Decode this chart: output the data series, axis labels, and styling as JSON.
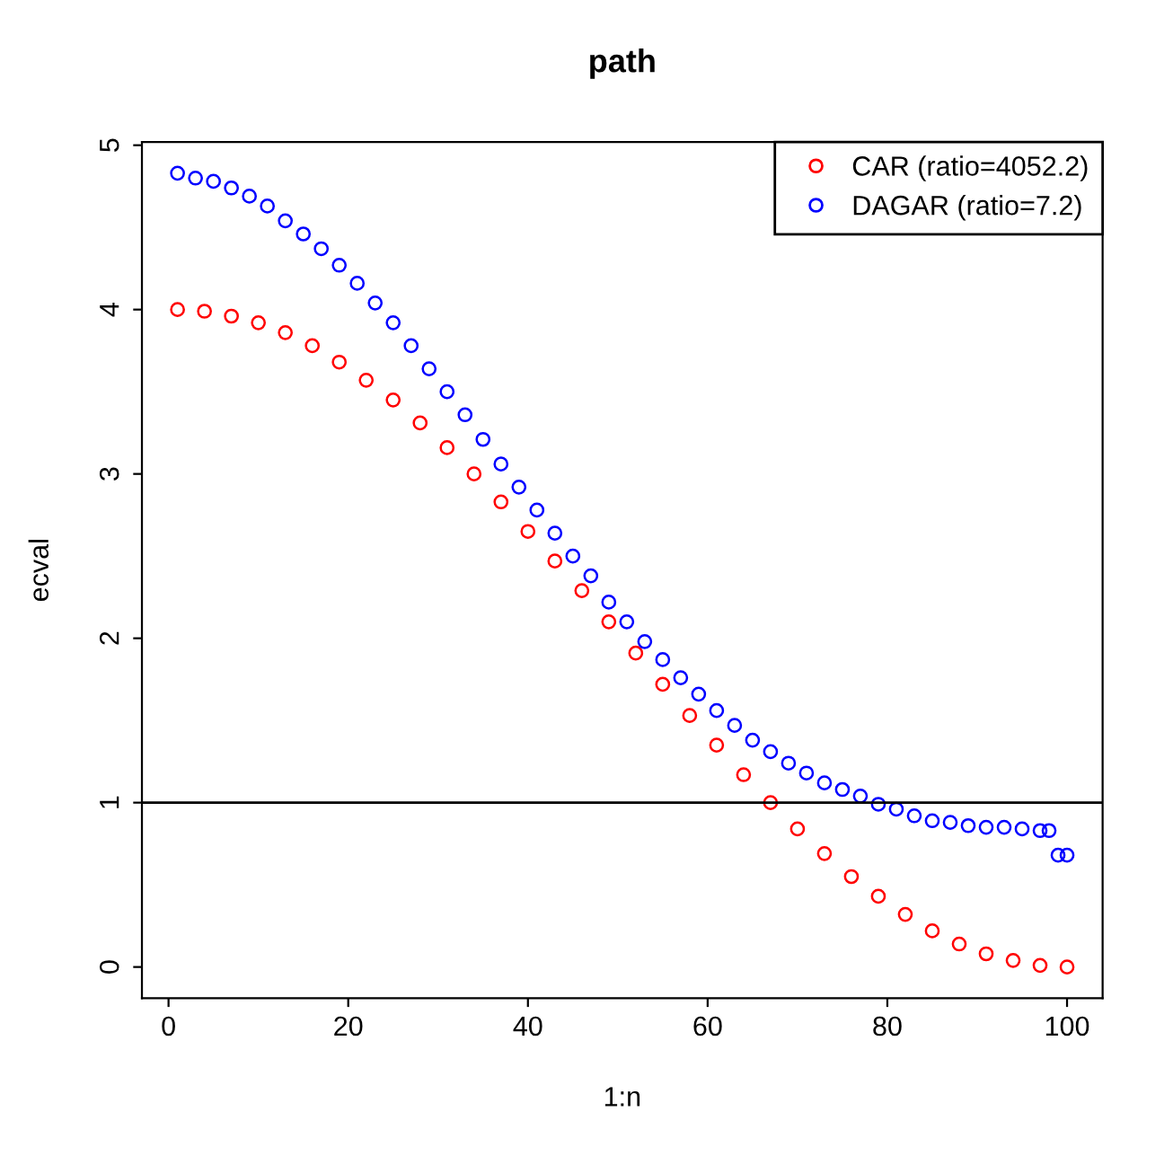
{
  "chart_data": {
    "type": "scatter",
    "title": "path",
    "xlabel": "1:n",
    "ylabel": "ecval",
    "xlim": [
      -2.96,
      103.96
    ],
    "ylim": [
      -0.19,
      5.02
    ],
    "xticks": [
      0,
      20,
      40,
      60,
      80,
      100
    ],
    "yticks": [
      0,
      1,
      2,
      3,
      4,
      5
    ],
    "marker": "circle",
    "grid": false,
    "legend": "top right",
    "ref_lines": [
      {
        "axis": "y",
        "value": 1,
        "color": "#000000",
        "line_style": "solid"
      }
    ],
    "series": [
      {
        "name": "CAR (ratio=4052.2)",
        "color": "#ff0000",
        "x": [
          1,
          4,
          7,
          10,
          13,
          16,
          19,
          22,
          25,
          28,
          31,
          34,
          37,
          40,
          43,
          46,
          49,
          52,
          55,
          58,
          61,
          64,
          67,
          70,
          73,
          76,
          79,
          82,
          85,
          88,
          91,
          94,
          97,
          100
        ],
        "values": [
          4.0,
          3.99,
          3.96,
          3.92,
          3.86,
          3.78,
          3.68,
          3.57,
          3.45,
          3.31,
          3.16,
          3.0,
          2.83,
          2.65,
          2.47,
          2.29,
          2.1,
          1.91,
          1.72,
          1.53,
          1.35,
          1.17,
          1.0,
          0.84,
          0.69,
          0.55,
          0.43,
          0.32,
          0.22,
          0.14,
          0.08,
          0.04,
          0.01,
          0.0
        ]
      },
      {
        "name": "DAGAR (ratio=7.2)",
        "color": "#0000ff",
        "x": [
          1,
          3,
          5,
          7,
          9,
          11,
          13,
          15,
          17,
          19,
          21,
          23,
          25,
          27,
          29,
          31,
          33,
          35,
          37,
          39,
          41,
          43,
          45,
          47,
          49,
          51,
          53,
          55,
          57,
          59,
          61,
          63,
          65,
          67,
          69,
          71,
          73,
          75,
          77,
          79,
          81,
          83,
          85,
          87,
          89,
          91,
          93,
          95,
          97,
          98,
          99,
          100
        ],
        "values": [
          4.83,
          4.8,
          4.78,
          4.74,
          4.69,
          4.63,
          4.54,
          4.46,
          4.37,
          4.27,
          4.16,
          4.04,
          3.92,
          3.78,
          3.64,
          3.5,
          3.36,
          3.21,
          3.06,
          2.92,
          2.78,
          2.64,
          2.5,
          2.38,
          2.22,
          2.1,
          1.98,
          1.87,
          1.76,
          1.66,
          1.56,
          1.47,
          1.38,
          1.31,
          1.24,
          1.18,
          1.12,
          1.08,
          1.04,
          0.99,
          0.96,
          0.92,
          0.89,
          0.88,
          0.86,
          0.85,
          0.85,
          0.84,
          0.83,
          0.83,
          0.68,
          0.68
        ]
      }
    ]
  }
}
